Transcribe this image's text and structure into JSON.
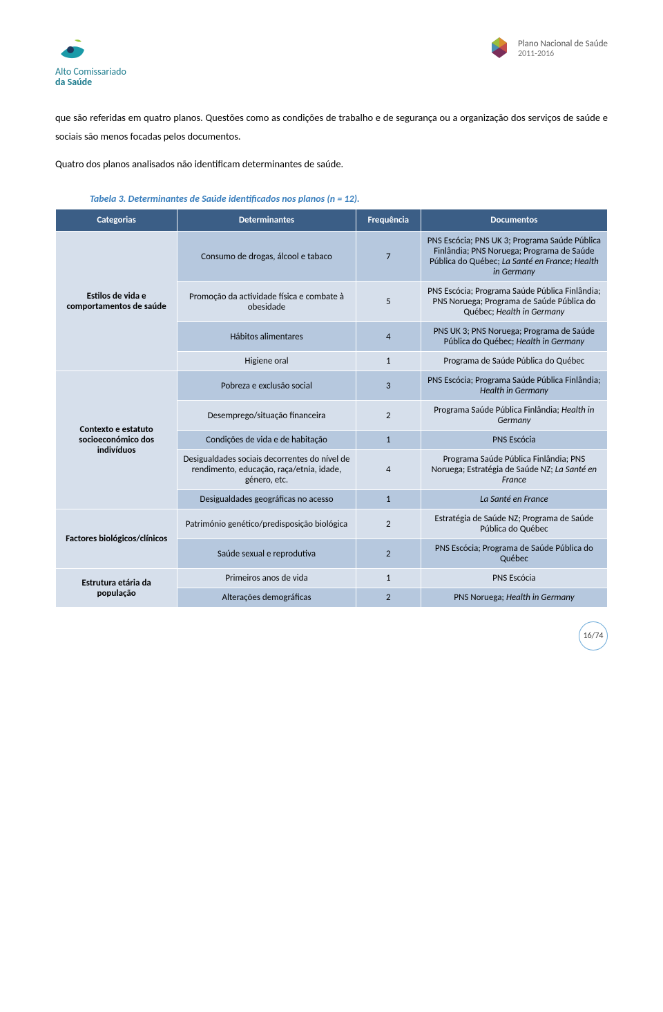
{
  "header": {
    "left": {
      "line1": "Alto Comissariado",
      "line2": "da Saúde"
    },
    "right": {
      "line1": "Plano Nacional de Saúde",
      "line2": "2011-2016"
    }
  },
  "para1": "que são referidas em quatro planos. Questões como as condições de trabalho e de segurança ou a organização dos serviços de saúde e sociais são menos focadas pelos documentos.",
  "para2": "Quatro dos planos analisados não identificam determinantes de saúde.",
  "table_title": "Tabela 3. Determinantes de Saúde identificados nos planos (n = 12).",
  "columns": [
    "Categorias",
    "Determinantes",
    "Frequência",
    "Documentos"
  ],
  "groups": [
    {
      "category": "Estilos de vida e comportamentos de saúde",
      "rows": [
        {
          "det": "Consumo de drogas, álcool e tabaco",
          "freq": "7",
          "doc": "PNS Escócia; PNS UK 3; Programa Saúde Pública Finlândia; PNS Noruega; Programa de Saúde Pública do Québec; <i>La Santé en France; Health in Germany</i>"
        },
        {
          "det": "Promoção da actividade física e combate à obesidade",
          "freq": "5",
          "doc": "PNS Escócia; Programa Saúde Pública Finlândia; PNS Noruega; Programa de Saúde Pública do Québec; <i>Health in Germany</i>"
        },
        {
          "det": "Hábitos alimentares",
          "freq": "4",
          "doc": "PNS UK 3; PNS Noruega; Programa de Saúde Pública do Québec; <i>Health in Germany</i>"
        },
        {
          "det": "Higiene oral",
          "freq": "1",
          "doc": "Programa de Saúde Pública do Québec"
        }
      ]
    },
    {
      "category": "Contexto e estatuto socioeconómico dos indivíduos",
      "rows": [
        {
          "det": "Pobreza e exclusão social",
          "freq": "3",
          "doc": "PNS Escócia; Programa Saúde Pública Finlândia; <i>Health in Germany</i>"
        },
        {
          "det": "Desemprego/situação financeira",
          "freq": "2",
          "doc": "Programa Saúde Pública Finlândia; <i>Health in Germany</i>"
        },
        {
          "det": "Condições de vida e de habitação",
          "freq": "1",
          "doc": "PNS Escócia"
        },
        {
          "det": "Desigualdades sociais decorrentes do nível de rendimento, educação, raça/etnia, idade, género, etc.",
          "freq": "4",
          "doc": "Programa Saúde Pública Finlândia; PNS Noruega; Estratégia de Saúde NZ; <i>La Santé en France</i>"
        },
        {
          "det": "Desigualdades geográficas no acesso",
          "freq": "1",
          "doc": "<i>La Santé en France</i>"
        }
      ]
    },
    {
      "category": "Factores biológicos/clínicos",
      "rows": [
        {
          "det": "Património genético/predisposição biológica",
          "freq": "2",
          "doc": "Estratégia de Saúde NZ; Programa de Saúde Pública do Québec"
        },
        {
          "det": "Saúde sexual e reprodutiva",
          "freq": "2",
          "doc": "PNS Escócia; Programa de Saúde Pública do Québec"
        }
      ]
    },
    {
      "category": "Estrutura etária da população",
      "rows": [
        {
          "det": "Primeiros anos de vida",
          "freq": "1",
          "doc": "PNS Escócia"
        },
        {
          "det": "Alterações demográficas",
          "freq": "2",
          "doc": "PNS Noruega; <i>Health in Germany</i>"
        }
      ]
    }
  ],
  "page": "16/74",
  "colors": {
    "header_bg": "#3b5e86",
    "row_a": "#b6c8de",
    "row_b": "#d6dfeb",
    "title": "#3a7fbd",
    "badge_border": "#6aa9d8",
    "logo_teal": "#1a7a8c"
  }
}
